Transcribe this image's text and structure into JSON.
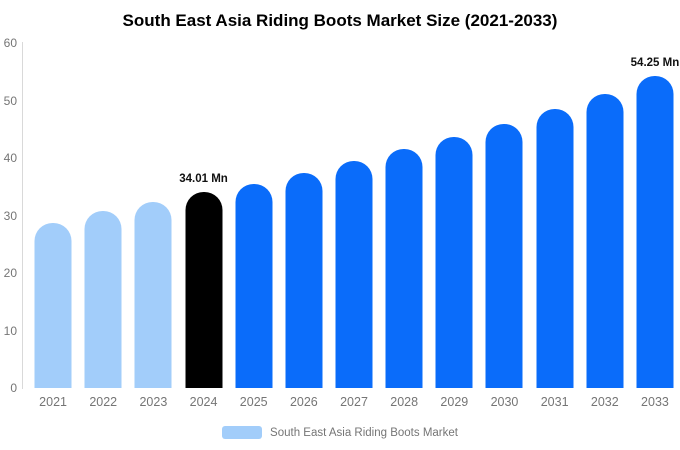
{
  "title": "South East Asia Riding Boots Market Size (2021-2033)",
  "legend": {
    "label": "South East Asia Riding Boots Market",
    "swatch_color": "#a2cdfa"
  },
  "colors": {
    "historical_bar": "#a2cdfa",
    "highlight_bar": "#000000",
    "forecast_bar": "#0a6cfa",
    "axis_line": "#d9d9d9",
    "tick_text": "#757575",
    "title_text": "#000000",
    "annotation_text": "#111111"
  },
  "chart_data": {
    "type": "bar",
    "title": "South East Asia Riding Boots Market Size (2021-2033)",
    "categories": [
      "2021",
      "2022",
      "2023",
      "2024",
      "2025",
      "2026",
      "2027",
      "2028",
      "2029",
      "2030",
      "2031",
      "2032",
      "2033"
    ],
    "values": [
      28.7,
      30.8,
      32.3,
      34.01,
      35.5,
      37.4,
      39.4,
      41.6,
      43.7,
      46.0,
      48.5,
      51.1,
      54.25
    ],
    "unit": "Mn",
    "bar_colors": [
      "#a2cdfa",
      "#a2cdfa",
      "#a2cdfa",
      "#000000",
      "#0a6cfa",
      "#0a6cfa",
      "#0a6cfa",
      "#0a6cfa",
      "#0a6cfa",
      "#0a6cfa",
      "#0a6cfa",
      "#0a6cfa",
      "#0a6cfa"
    ],
    "annotations": [
      {
        "category": "2024",
        "text": "34.01 Mn"
      },
      {
        "category": "2033",
        "text": "54.25 Mn"
      }
    ],
    "xlabel": "",
    "ylabel": "",
    "ylim": [
      0,
      60
    ],
    "yticks": [
      0,
      10,
      20,
      30,
      40,
      50,
      60
    ],
    "grid": false,
    "legend_position": "bottom"
  }
}
